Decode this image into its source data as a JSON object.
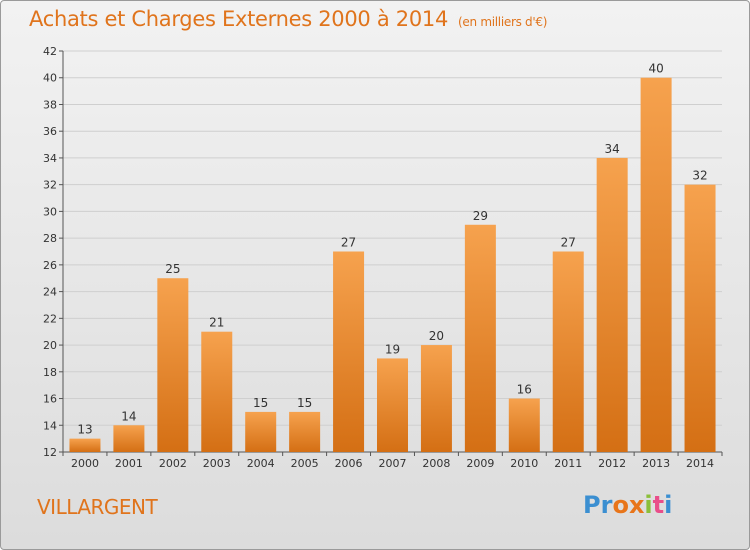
{
  "header": {
    "title": "Achats et Charges Externes 2000 à 2014",
    "unit": "(en milliers d'€)"
  },
  "footer": {
    "place": "VILLARGENT",
    "logo_letters": [
      "P",
      "r",
      "o",
      "x",
      "i",
      "t",
      "i"
    ],
    "logo_colors": [
      "#3b8fd1",
      "#3b8fd1",
      "#e8751a",
      "#e8751a",
      "#8bbf3a",
      "#e94e8a",
      "#3b8fd1"
    ]
  },
  "colors": {
    "bar_light": "#f6a24e",
    "bar_dark": "#d46f14",
    "text": "#e0741c"
  },
  "chart_data": {
    "type": "bar",
    "categories": [
      "2000",
      "2001",
      "2002",
      "2003",
      "2004",
      "2005",
      "2006",
      "2007",
      "2008",
      "2009",
      "2010",
      "2011",
      "2012",
      "2013",
      "2014"
    ],
    "values": [
      13,
      14,
      25,
      21,
      15,
      15,
      27,
      19,
      20,
      29,
      16,
      27,
      34,
      40,
      32
    ],
    "data_labels": [
      "13",
      "14",
      "25",
      "21",
      "15",
      "15",
      "27",
      "19",
      "20",
      "29",
      "16",
      "27",
      "34",
      "40",
      "32"
    ],
    "ylim": [
      12,
      42
    ],
    "yticks": [
      12,
      14,
      16,
      18,
      20,
      22,
      24,
      26,
      28,
      30,
      32,
      34,
      36,
      38,
      40,
      42
    ],
    "grid": true
  }
}
